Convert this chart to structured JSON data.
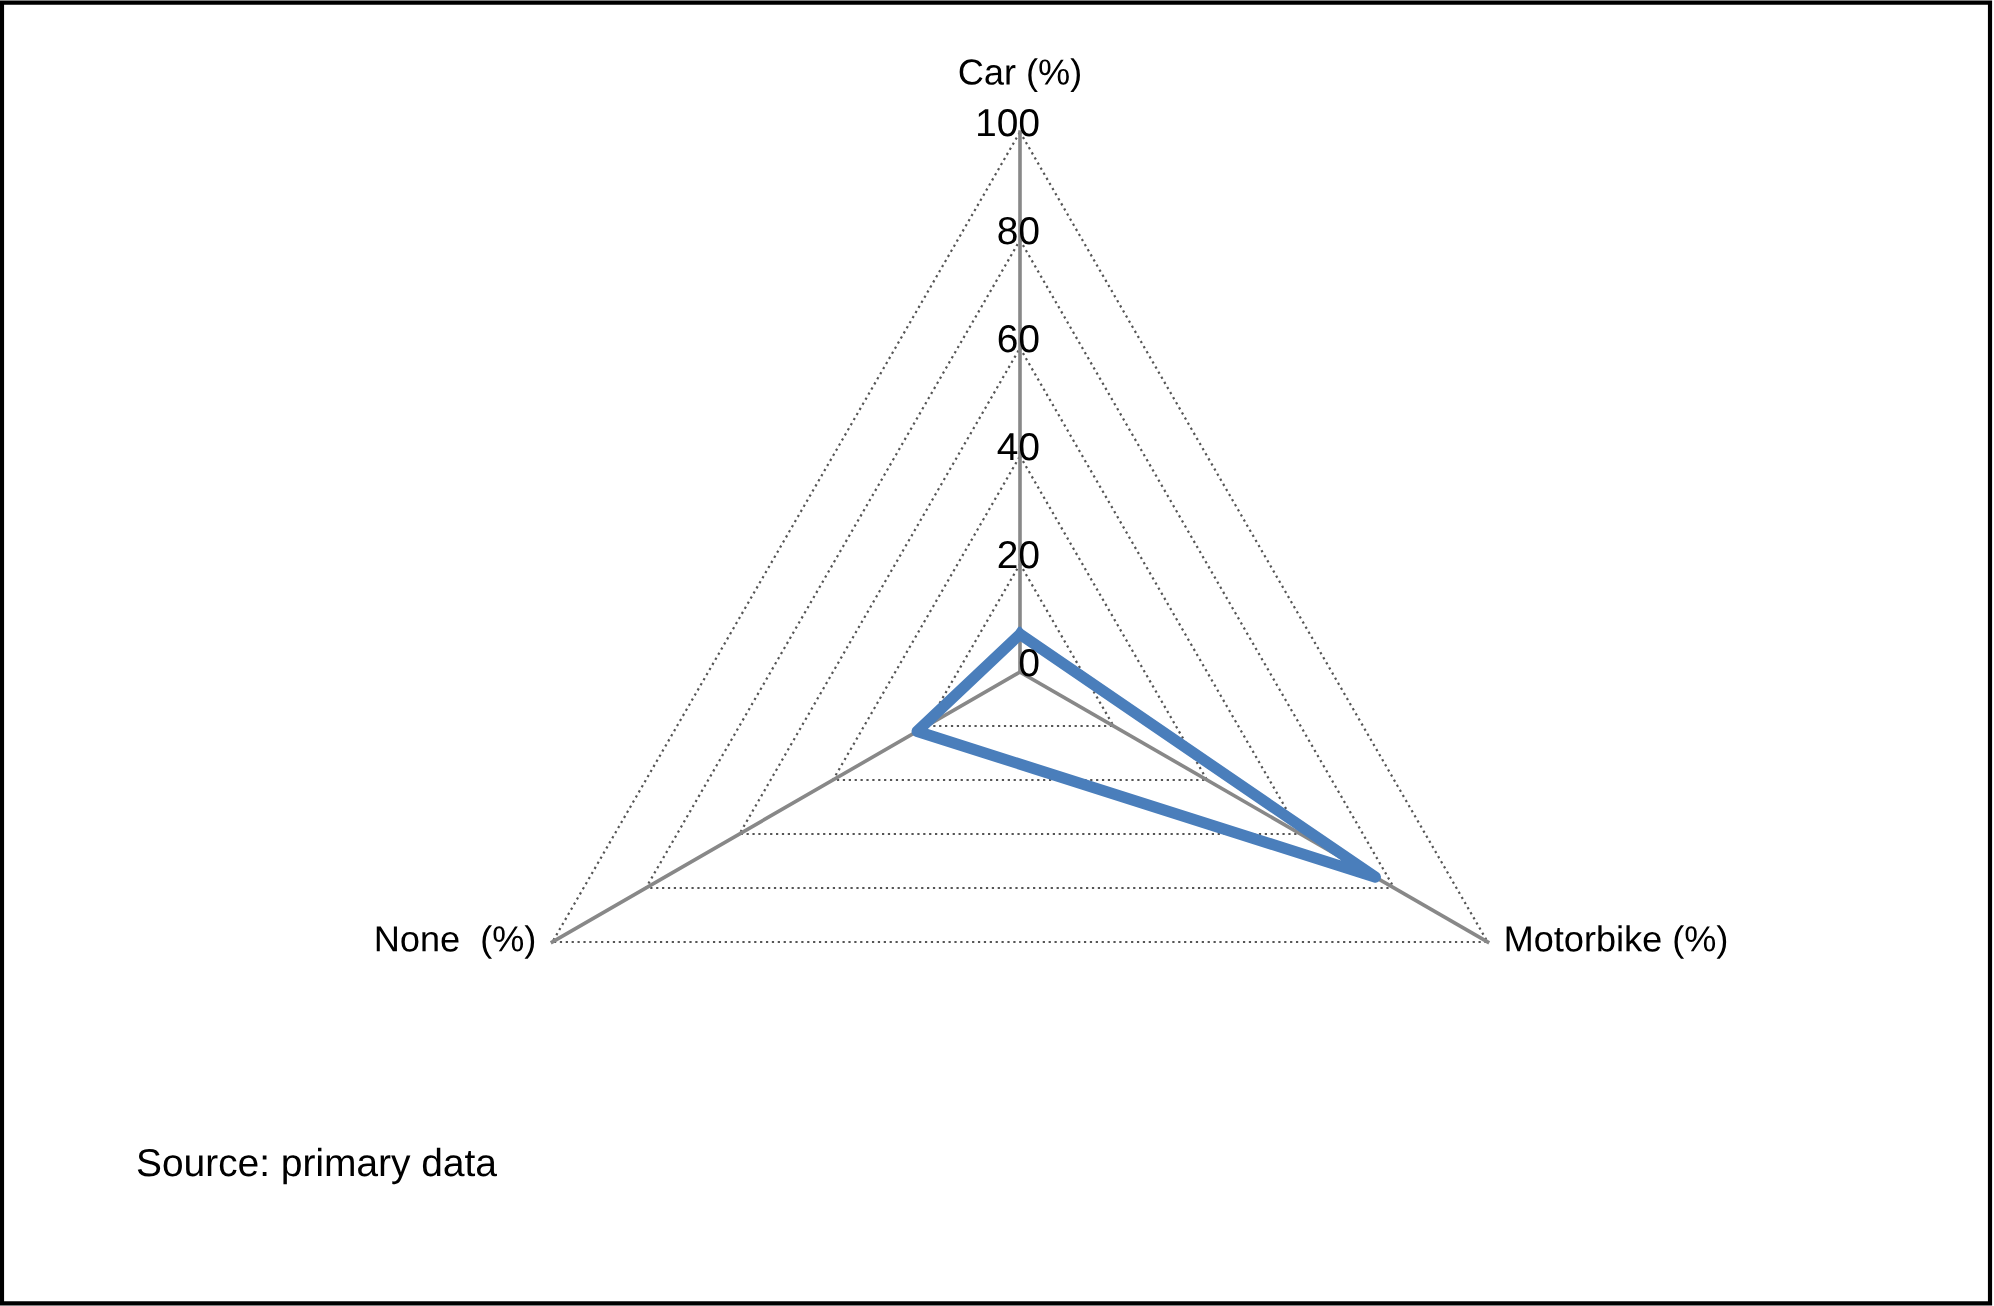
{
  "chart_data": {
    "type": "radar",
    "categories": [
      "Car (%)",
      "Motorbike (%)",
      "None  (%)"
    ],
    "series": [
      {
        "color": "#4a7ebb",
        "values": [
          7,
          76,
          22
        ]
      }
    ],
    "ylim": [
      0,
      100
    ],
    "yticks": [
      0,
      20,
      40,
      60,
      80,
      100
    ],
    "grid": true,
    "marker": "none",
    "line_style": "solid",
    "annotations": [
      "Source: primary data"
    ]
  }
}
